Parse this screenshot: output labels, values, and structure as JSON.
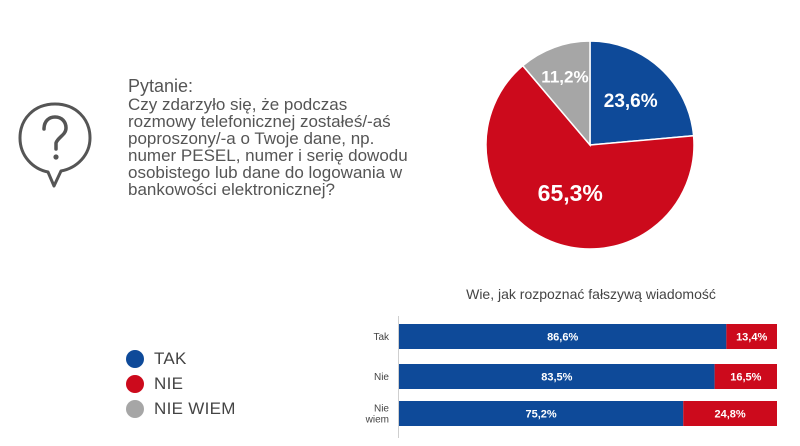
{
  "question": {
    "label": "Pytanie:",
    "text": "Czy zdarzyło się, że podczas rozmowy telefonicznej zostałeś/-aś poproszony/-a o Twoje dane, np. numer PESEL, numer i serię dowodu osobistego lub dane do logowania w bankowości elektronicznej?",
    "icon": "question-bubble-icon"
  },
  "legend": [
    {
      "label": "TAK",
      "color": "#0e4a99"
    },
    {
      "label": "NIE",
      "color": "#cc0a1c"
    },
    {
      "label": "NIE WIEM",
      "color": "#a6a6a6"
    }
  ],
  "chart_data": [
    {
      "type": "pie",
      "slices": [
        {
          "name": "TAK",
          "value": 23.6,
          "label": "23,6%",
          "color": "#0e4a99"
        },
        {
          "name": "NIE",
          "value": 65.3,
          "label": "65,3%",
          "color": "#cc0a1c"
        },
        {
          "name": "NIE WIEM",
          "value": 11.2,
          "label": "11,2%",
          "color": "#a6a6a6"
        }
      ]
    },
    {
      "type": "bar",
      "orientation": "horizontal",
      "stacked": true,
      "title": "Wie, jak rozpoznać fałszywą wiadomość",
      "categories": [
        "Tak",
        "Nie",
        "Nie wiem"
      ],
      "series": [
        {
          "name": "TAK",
          "color": "#0e4a99",
          "values": [
            86.6,
            83.5,
            75.2
          ],
          "labels": [
            "86,6%",
            "83,5%",
            "75,2%"
          ]
        },
        {
          "name": "NIE",
          "color": "#cc0a1c",
          "values": [
            13.4,
            16.5,
            24.8
          ],
          "labels": [
            "13,4%",
            "16,5%",
            "24,8%"
          ]
        }
      ],
      "xlim": [
        0,
        100
      ]
    }
  ]
}
